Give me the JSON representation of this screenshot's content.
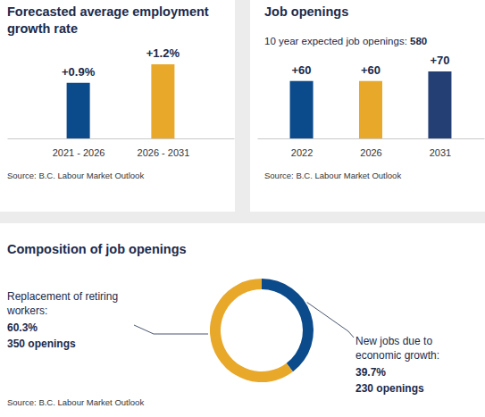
{
  "chart_data": [
    {
      "type": "bar",
      "title": "Forecasted average employment growth rate",
      "categories": [
        "2021 - 2026",
        "2026 - 2031"
      ],
      "values": [
        0.9,
        1.2
      ],
      "value_labels": [
        "+0.9%",
        "+1.2%"
      ],
      "colors": [
        "#0b4a8b",
        "#e8a82a"
      ],
      "data_labels": true,
      "tick_labels": "x",
      "source": "Source: B.C. Labour Market Outlook"
    },
    {
      "type": "bar",
      "title": "Job openings",
      "subtitle": "10 year expected job openings:",
      "total": 580,
      "categories": [
        "2022",
        "2026",
        "2031"
      ],
      "values": [
        60,
        60,
        70
      ],
      "value_labels": [
        "+60",
        "+60",
        "+70"
      ],
      "colors": [
        "#0b4a8b",
        "#e8a82a",
        "#243f73"
      ],
      "data_labels": true,
      "tick_labels": "x",
      "source": "Source: B.C. Labour Market Outlook"
    },
    {
      "type": "donut",
      "title": "Composition of job openings",
      "categories": [
        "New jobs due to economic growth:",
        "Replacement of retiring workers:"
      ],
      "values": [
        39.7,
        60.3
      ],
      "value_labels": [
        "39.7%",
        "60.3%"
      ],
      "counts": [
        230,
        350
      ],
      "count_labels": [
        "230 openings",
        "350 openings"
      ],
      "colors": [
        "#0b4a8b",
        "#e8a82a"
      ],
      "data_labels": true,
      "source": "Source: B.C. Labour Market Outlook"
    }
  ]
}
